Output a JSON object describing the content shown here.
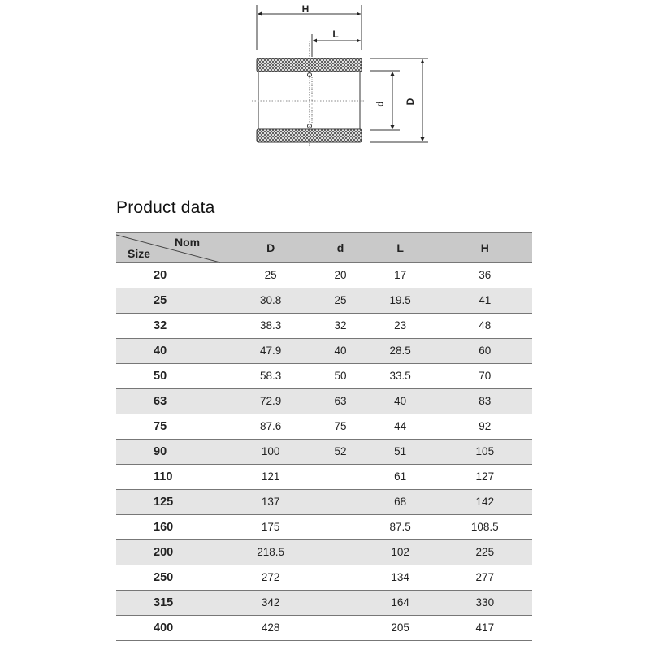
{
  "diagram": {
    "labels": {
      "H": "H",
      "L": "L",
      "d": "d",
      "D": "D"
    }
  },
  "title": "Product data",
  "table": {
    "corner": {
      "top": "Nom",
      "bottom": "Size"
    },
    "columns": [
      "D",
      "d",
      "L",
      "H"
    ],
    "rows": [
      {
        "size": "20",
        "D": "25",
        "d": "20",
        "L": "17",
        "H": "36"
      },
      {
        "size": "25",
        "D": "30.8",
        "d": "25",
        "L": "19.5",
        "H": "41"
      },
      {
        "size": "32",
        "D": "38.3",
        "d": "32",
        "L": "23",
        "H": "48"
      },
      {
        "size": "40",
        "D": "47.9",
        "d": "40",
        "L": "28.5",
        "H": "60"
      },
      {
        "size": "50",
        "D": "58.3",
        "d": "50",
        "L": "33.5",
        "H": "70"
      },
      {
        "size": "63",
        "D": "72.9",
        "d": "63",
        "L": "40",
        "H": "83"
      },
      {
        "size": "75",
        "D": "87.6",
        "d": "75",
        "L": "44",
        "H": "92"
      },
      {
        "size": "90",
        "D": "100",
        "d": "52",
        "L": "51",
        "H": "105"
      },
      {
        "size": "110",
        "D": "121",
        "d": "",
        "L": "61",
        "H": "127"
      },
      {
        "size": "125",
        "D": "137",
        "d": "",
        "L": "68",
        "H": "142"
      },
      {
        "size": "160",
        "D": "175",
        "d": "",
        "L": "87.5",
        "H": "108.5"
      },
      {
        "size": "200",
        "D": "218.5",
        "d": "",
        "L": "102",
        "H": "225"
      },
      {
        "size": "250",
        "D": "272",
        "d": "",
        "L": "134",
        "H": "277"
      },
      {
        "size": "315",
        "D": "342",
        "d": "",
        "L": "164",
        "H": "330"
      },
      {
        "size": "400",
        "D": "428",
        "d": "",
        "L": "205",
        "H": "417"
      }
    ]
  }
}
